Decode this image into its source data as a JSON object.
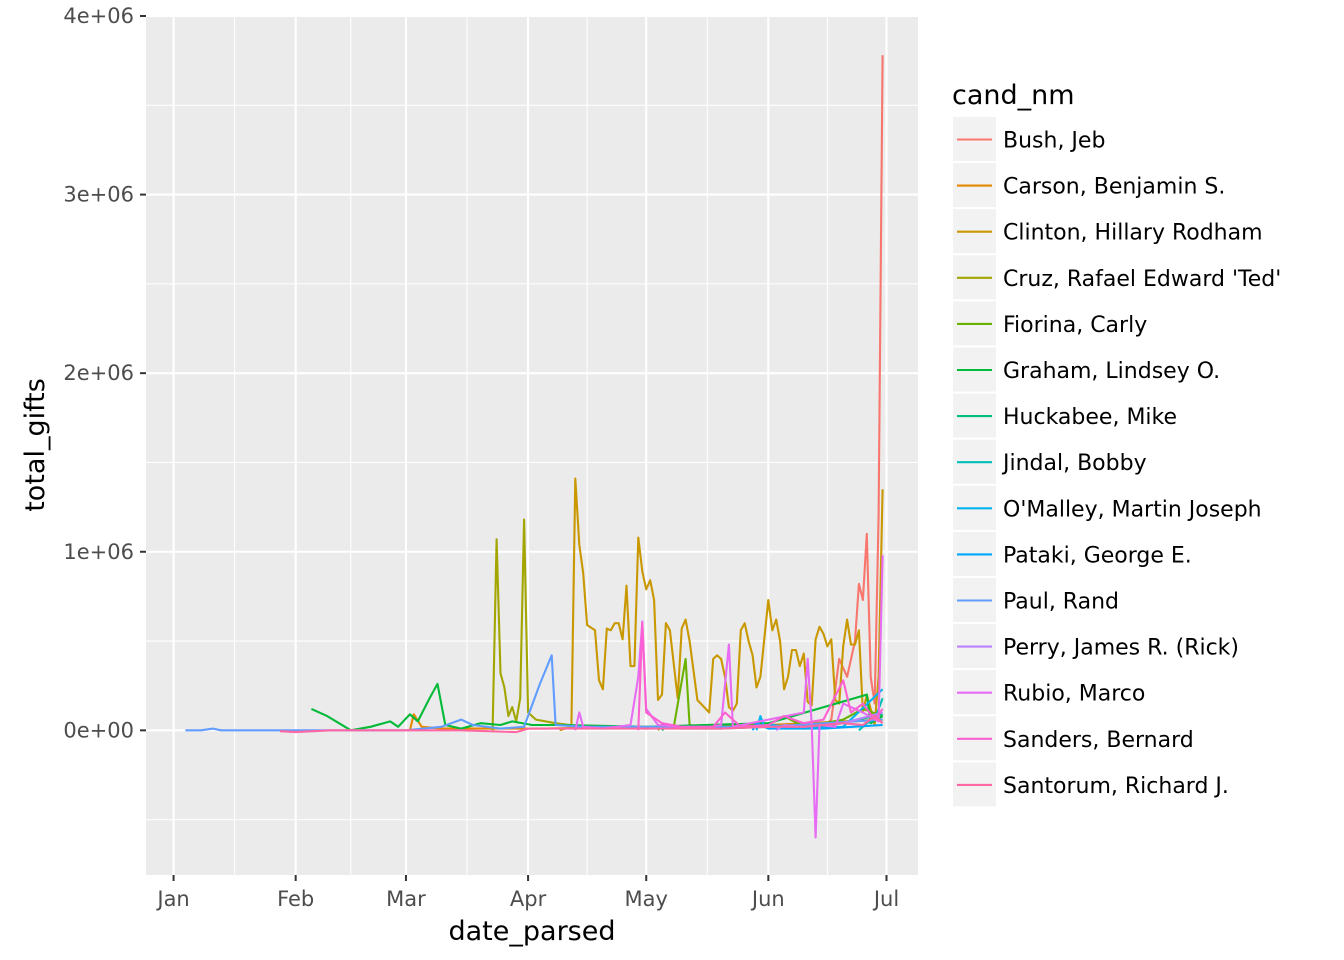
{
  "chart_data": {
    "type": "line",
    "xlabel": "date_parsed",
    "ylabel": "total_gifts",
    "x_ticks": [
      "Jan",
      "Feb",
      "Mar",
      "Apr",
      "May",
      "Jun",
      "Jul"
    ],
    "x_tick_dates": [
      "2015-01-01",
      "2015-02-01",
      "2015-03-01",
      "2015-04-01",
      "2015-05-01",
      "2015-06-01",
      "2015-07-01"
    ],
    "xlim": [
      "2014-12-25",
      "2015-07-09"
    ],
    "y_ticks": [
      "0e+00",
      "1e+06",
      "2e+06",
      "3e+06",
      "4e+06"
    ],
    "y_tick_values": [
      0,
      1000000,
      2000000,
      3000000,
      4000000
    ],
    "ylim": [
      -810000,
      4000000
    ],
    "grid": true,
    "legend_title": "cand_nm",
    "legend_position": "right",
    "series": [
      {
        "name": "Bush, Jeb",
        "color": "#F8766D",
        "points": [
          [
            "2015-06-15",
            20000
          ],
          [
            "2015-06-17",
            60000
          ],
          [
            "2015-06-19",
            400000
          ],
          [
            "2015-06-21",
            300000
          ],
          [
            "2015-06-23",
            500000
          ],
          [
            "2015-06-24",
            820000
          ],
          [
            "2015-06-25",
            730000
          ],
          [
            "2015-06-26",
            1100000
          ],
          [
            "2015-06-27",
            300000
          ],
          [
            "2015-06-28",
            150000
          ],
          [
            "2015-06-29",
            1200000
          ],
          [
            "2015-06-30",
            3780000
          ]
        ]
      },
      {
        "name": "Carson, Benjamin S.",
        "color": "#E58700",
        "points": [
          [
            "2015-03-02",
            0
          ],
          [
            "2015-03-03",
            90000
          ],
          [
            "2015-03-05",
            20000
          ],
          [
            "2015-03-10",
            10000
          ],
          [
            "2015-04-05",
            10000
          ],
          [
            "2015-05-01",
            20000
          ],
          [
            "2015-06-01",
            30000
          ],
          [
            "2015-06-30",
            60000
          ]
        ]
      },
      {
        "name": "Clinton, Hillary Rodham",
        "color": "#C99800",
        "points": [
          [
            "2015-04-09",
            0
          ],
          [
            "2015-04-12",
            20000
          ],
          [
            "2015-04-13",
            1410000
          ],
          [
            "2015-04-14",
            1040000
          ],
          [
            "2015-04-15",
            880000
          ],
          [
            "2015-04-16",
            590000
          ],
          [
            "2015-04-18",
            560000
          ],
          [
            "2015-04-19",
            280000
          ],
          [
            "2015-04-20",
            230000
          ],
          [
            "2015-04-21",
            570000
          ],
          [
            "2015-04-22",
            560000
          ],
          [
            "2015-04-23",
            600000
          ],
          [
            "2015-04-24",
            600000
          ],
          [
            "2015-04-25",
            510000
          ],
          [
            "2015-04-26",
            810000
          ],
          [
            "2015-04-27",
            360000
          ],
          [
            "2015-04-28",
            360000
          ],
          [
            "2015-04-29",
            1080000
          ],
          [
            "2015-04-30",
            890000
          ],
          [
            "2015-05-01",
            790000
          ],
          [
            "2015-05-02",
            840000
          ],
          [
            "2015-05-03",
            730000
          ],
          [
            "2015-05-04",
            170000
          ],
          [
            "2015-05-05",
            200000
          ],
          [
            "2015-05-06",
            600000
          ],
          [
            "2015-05-07",
            560000
          ],
          [
            "2015-05-09",
            180000
          ],
          [
            "2015-05-10",
            570000
          ],
          [
            "2015-05-11",
            620000
          ],
          [
            "2015-05-12",
            500000
          ],
          [
            "2015-05-14",
            170000
          ],
          [
            "2015-05-17",
            100000
          ],
          [
            "2015-05-18",
            400000
          ],
          [
            "2015-05-19",
            420000
          ],
          [
            "2015-05-20",
            400000
          ],
          [
            "2015-05-21",
            300000
          ],
          [
            "2015-05-22",
            130000
          ],
          [
            "2015-05-23",
            110000
          ],
          [
            "2015-05-24",
            150000
          ],
          [
            "2015-05-25",
            560000
          ],
          [
            "2015-05-26",
            600000
          ],
          [
            "2015-05-27",
            500000
          ],
          [
            "2015-05-28",
            420000
          ],
          [
            "2015-05-29",
            240000
          ],
          [
            "2015-05-30",
            300000
          ],
          [
            "2015-06-01",
            730000
          ],
          [
            "2015-06-02",
            560000
          ],
          [
            "2015-06-03",
            620000
          ],
          [
            "2015-06-04",
            500000
          ],
          [
            "2015-06-05",
            230000
          ],
          [
            "2015-06-06",
            300000
          ],
          [
            "2015-06-07",
            450000
          ],
          [
            "2015-06-08",
            450000
          ],
          [
            "2015-06-09",
            360000
          ],
          [
            "2015-06-10",
            430000
          ],
          [
            "2015-06-11",
            160000
          ],
          [
            "2015-06-12",
            140000
          ],
          [
            "2015-06-13",
            510000
          ],
          [
            "2015-06-14",
            580000
          ],
          [
            "2015-06-15",
            540000
          ],
          [
            "2015-06-16",
            470000
          ],
          [
            "2015-06-17",
            510000
          ],
          [
            "2015-06-18",
            170000
          ],
          [
            "2015-06-19",
            150000
          ],
          [
            "2015-06-20",
            470000
          ],
          [
            "2015-06-21",
            620000
          ],
          [
            "2015-06-22",
            480000
          ],
          [
            "2015-06-23",
            480000
          ],
          [
            "2015-06-24",
            560000
          ],
          [
            "2015-06-25",
            100000
          ],
          [
            "2015-06-26",
            200000
          ],
          [
            "2015-06-27",
            120000
          ],
          [
            "2015-06-28",
            30000
          ],
          [
            "2015-06-29",
            300000
          ],
          [
            "2015-06-30",
            1350000
          ]
        ]
      },
      {
        "name": "Cruz, Rafael Edward 'Ted'",
        "color": "#A3A500",
        "points": [
          [
            "2015-03-23",
            0
          ],
          [
            "2015-03-24",
            1070000
          ],
          [
            "2015-03-25",
            320000
          ],
          [
            "2015-03-26",
            240000
          ],
          [
            "2015-03-27",
            80000
          ],
          [
            "2015-03-28",
            130000
          ],
          [
            "2015-03-29",
            50000
          ],
          [
            "2015-03-30",
            180000
          ],
          [
            "2015-03-31",
            1180000
          ],
          [
            "2015-04-01",
            100000
          ],
          [
            "2015-04-03",
            60000
          ],
          [
            "2015-04-08",
            40000
          ],
          [
            "2015-04-15",
            20000
          ],
          [
            "2015-05-01",
            10000
          ],
          [
            "2015-06-01",
            20000
          ],
          [
            "2015-06-30",
            60000
          ]
        ]
      },
      {
        "name": "Fiorina, Carly",
        "color": "#6BB100",
        "points": [
          [
            "2015-05-04",
            0
          ],
          [
            "2015-05-05",
            30000
          ],
          [
            "2015-05-08",
            20000
          ],
          [
            "2015-05-11",
            400000
          ],
          [
            "2015-05-12",
            30000
          ],
          [
            "2015-05-15",
            20000
          ],
          [
            "2015-05-20",
            10000
          ],
          [
            "2015-06-01",
            30000
          ],
          [
            "2015-06-05",
            80000
          ],
          [
            "2015-06-10",
            20000
          ],
          [
            "2015-06-20",
            60000
          ],
          [
            "2015-06-25",
            120000
          ],
          [
            "2015-06-30",
            80000
          ]
        ]
      },
      {
        "name": "Graham, Lindsey O.",
        "color": "#00BA38",
        "points": [
          [
            "2015-02-05",
            120000
          ],
          [
            "2015-02-09",
            80000
          ],
          [
            "2015-02-12",
            40000
          ],
          [
            "2015-02-15",
            0
          ],
          [
            "2015-02-20",
            20000
          ],
          [
            "2015-02-25",
            50000
          ],
          [
            "2015-02-27",
            20000
          ],
          [
            "2015-03-02",
            90000
          ],
          [
            "2015-03-04",
            50000
          ],
          [
            "2015-03-07",
            180000
          ],
          [
            "2015-03-09",
            260000
          ],
          [
            "2015-03-11",
            30000
          ],
          [
            "2015-03-15",
            10000
          ],
          [
            "2015-03-20",
            40000
          ],
          [
            "2015-03-25",
            30000
          ],
          [
            "2015-03-28",
            50000
          ],
          [
            "2015-04-02",
            30000
          ],
          [
            "2015-04-10",
            30000
          ],
          [
            "2015-05-01",
            20000
          ],
          [
            "2015-06-01",
            40000
          ],
          [
            "2015-06-26",
            200000
          ],
          [
            "2015-06-27",
            40000
          ],
          [
            "2015-06-30",
            80000
          ]
        ]
      },
      {
        "name": "Huckabee, Mike",
        "color": "#00BF7D",
        "points": [
          [
            "2015-05-05",
            0
          ],
          [
            "2015-05-06",
            20000
          ],
          [
            "2015-05-10",
            10000
          ],
          [
            "2015-05-20",
            10000
          ],
          [
            "2015-06-01",
            20000
          ],
          [
            "2015-06-15",
            20000
          ],
          [
            "2015-06-30",
            90000
          ]
        ]
      },
      {
        "name": "Jindal, Bobby",
        "color": "#00C0B8",
        "points": [
          [
            "2015-06-24",
            0
          ],
          [
            "2015-06-26",
            40000
          ],
          [
            "2015-06-28",
            60000
          ],
          [
            "2015-06-30",
            180000
          ]
        ]
      },
      {
        "name": "O'Malley, Martin Joseph",
        "color": "#00B4EF",
        "points": [
          [
            "2015-05-29",
            0
          ],
          [
            "2015-05-30",
            80000
          ],
          [
            "2015-05-31",
            20000
          ],
          [
            "2015-06-02",
            30000
          ],
          [
            "2015-06-10",
            10000
          ],
          [
            "2015-06-20",
            20000
          ],
          [
            "2015-06-30",
            230000
          ]
        ]
      },
      {
        "name": "Pataki, George E.",
        "color": "#00A5FF",
        "points": [
          [
            "2015-05-28",
            0
          ],
          [
            "2015-05-29",
            40000
          ],
          [
            "2015-06-01",
            10000
          ],
          [
            "2015-06-15",
            10000
          ],
          [
            "2015-06-30",
            30000
          ]
        ]
      },
      {
        "name": "Paul, Rand",
        "color": "#619CFF",
        "points": [
          [
            "2015-01-04",
            0
          ],
          [
            "2015-01-08",
            0
          ],
          [
            "2015-01-11",
            10000
          ],
          [
            "2015-01-13",
            0
          ],
          [
            "2015-01-20",
            0
          ],
          [
            "2015-01-30",
            0
          ],
          [
            "2015-02-10",
            0
          ],
          [
            "2015-02-20",
            0
          ],
          [
            "2015-03-01",
            0
          ],
          [
            "2015-03-10",
            20000
          ],
          [
            "2015-03-15",
            60000
          ],
          [
            "2015-03-18",
            30000
          ],
          [
            "2015-03-25",
            10000
          ],
          [
            "2015-03-31",
            20000
          ],
          [
            "2015-04-04",
            260000
          ],
          [
            "2015-04-07",
            420000
          ],
          [
            "2015-04-08",
            30000
          ],
          [
            "2015-04-15",
            20000
          ],
          [
            "2015-05-01",
            20000
          ],
          [
            "2015-06-01",
            20000
          ],
          [
            "2015-06-30",
            60000
          ]
        ]
      },
      {
        "name": "Perry, James R. (Rick)",
        "color": "#B983FF",
        "points": [
          [
            "2015-06-03",
            0
          ],
          [
            "2015-06-05",
            30000
          ],
          [
            "2015-06-10",
            20000
          ],
          [
            "2015-06-20",
            40000
          ],
          [
            "2015-06-30",
            100000
          ]
        ]
      },
      {
        "name": "Rubio, Marco",
        "color": "#E76BF3",
        "points": [
          [
            "2015-04-13",
            0
          ],
          [
            "2015-04-14",
            100000
          ],
          [
            "2015-04-15",
            20000
          ],
          [
            "2015-04-20",
            10000
          ],
          [
            "2015-04-27",
            30000
          ],
          [
            "2015-04-29",
            300000
          ],
          [
            "2015-04-30",
            610000
          ],
          [
            "2015-05-01",
            120000
          ],
          [
            "2015-05-04",
            30000
          ],
          [
            "2015-05-15",
            10000
          ],
          [
            "2015-05-20",
            30000
          ],
          [
            "2015-05-22",
            480000
          ],
          [
            "2015-05-23",
            20000
          ],
          [
            "2015-06-10",
            100000
          ],
          [
            "2015-06-11",
            400000
          ],
          [
            "2015-06-12",
            30000
          ],
          [
            "2015-06-13",
            -600000
          ],
          [
            "2015-06-14",
            30000
          ],
          [
            "2015-06-18",
            20000
          ],
          [
            "2015-06-20",
            150000
          ],
          [
            "2015-06-25",
            100000
          ],
          [
            "2015-06-29",
            50000
          ],
          [
            "2015-06-30",
            980000
          ]
        ]
      },
      {
        "name": "Sanders, Bernard",
        "color": "#FD61D1",
        "points": [
          [
            "2015-04-29",
            0
          ],
          [
            "2015-04-30",
            600000
          ],
          [
            "2015-05-01",
            100000
          ],
          [
            "2015-05-05",
            40000
          ],
          [
            "2015-05-10",
            20000
          ],
          [
            "2015-05-18",
            20000
          ],
          [
            "2015-05-21",
            100000
          ],
          [
            "2015-05-25",
            20000
          ],
          [
            "2015-06-01",
            30000
          ],
          [
            "2015-06-05",
            80000
          ],
          [
            "2015-06-10",
            40000
          ],
          [
            "2015-06-15",
            60000
          ],
          [
            "2015-06-20",
            280000
          ],
          [
            "2015-06-22",
            100000
          ],
          [
            "2015-06-25",
            150000
          ],
          [
            "2015-06-28",
            60000
          ],
          [
            "2015-06-30",
            120000
          ]
        ]
      },
      {
        "name": "Santorum, Richard J.",
        "color": "#FF67A4",
        "points": [
          [
            "2015-01-28",
            -5000
          ],
          [
            "2015-02-01",
            -10000
          ],
          [
            "2015-02-10",
            0
          ],
          [
            "2015-03-01",
            0
          ],
          [
            "2015-03-15",
            0
          ],
          [
            "2015-03-29",
            -10000
          ],
          [
            "2015-04-01",
            10000
          ],
          [
            "2015-04-20",
            10000
          ],
          [
            "2015-05-01",
            10000
          ],
          [
            "2015-05-20",
            10000
          ],
          [
            "2015-06-01",
            20000
          ],
          [
            "2015-06-10",
            20000
          ],
          [
            "2015-06-20",
            40000
          ],
          [
            "2015-06-25",
            30000
          ],
          [
            "2015-06-28",
            80000
          ],
          [
            "2015-06-30",
            40000
          ]
        ]
      }
    ]
  }
}
